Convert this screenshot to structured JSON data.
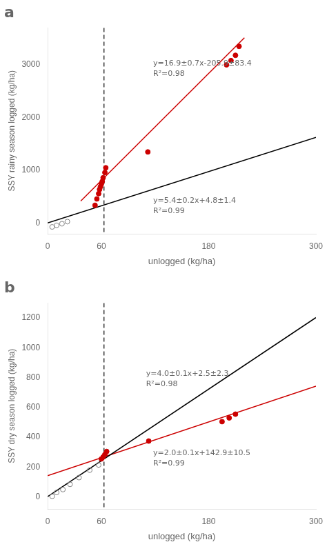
{
  "chart_data": [
    {
      "type": "scatter",
      "title": "a",
      "xlabel": "unlogged (kg/ha)",
      "ylabel": "SSY rainy season logged (kg/ha)",
      "xlim": [
        0,
        300
      ],
      "ylim": [
        -200,
        3700
      ],
      "xticks": [
        0,
        60,
        180,
        300
      ],
      "yticks": [
        0,
        1000,
        2000,
        3000
      ],
      "grid": false,
      "series": [
        {
          "type": "scatter",
          "marker": "open_circle",
          "color": "#808080",
          "x": [
            5,
            10,
            16,
            22
          ],
          "values": [
            -70,
            -40,
            -10,
            30
          ]
        },
        {
          "type": "scatter",
          "marker": "circle",
          "color": "#cc0000",
          "x": [
            53,
            55,
            57,
            58,
            59,
            60,
            61,
            62,
            64,
            65,
            112,
            200,
            205,
            210,
            214
          ],
          "values": [
            340,
            460,
            560,
            640,
            690,
            740,
            790,
            860,
            960,
            1050,
            1350,
            3000,
            3080,
            3180,
            3350
          ]
        },
        {
          "type": "line",
          "line_style": "solid",
          "color": "#000000",
          "x": [
            0,
            300
          ],
          "values": [
            4.8,
            1624.8
          ]
        },
        {
          "type": "line",
          "line_style": "solid",
          "color": "#cc0000",
          "x": [
            37,
            220
          ],
          "values": [
            419.4,
            3512.1
          ]
        },
        {
          "type": "vline",
          "line_style": "dashed",
          "color": "#000000",
          "x": [
            63
          ]
        }
      ],
      "annotations": [
        {
          "text": "y=16.9±0.7x-205.9±83.4\nR²=0.98",
          "x": 118,
          "y": 3100
        },
        {
          "text": "y=5.4±0.2x+4.8±1.4\nR²=0.99",
          "x": 118,
          "y": 500
        }
      ]
    },
    {
      "type": "scatter",
      "title": "b",
      "xlabel": "unlogged (kg/ha)",
      "ylabel": "SSY dry season logged (kg/ha)",
      "xlim": [
        0,
        300
      ],
      "ylim": [
        -80,
        1300
      ],
      "xticks": [
        0,
        60,
        180,
        300
      ],
      "yticks": [
        0,
        200,
        400,
        600,
        800,
        1000,
        1200
      ],
      "grid": false,
      "series": [
        {
          "type": "scatter",
          "marker": "open_circle",
          "color": "#808080",
          "x": [
            5,
            10,
            17,
            25,
            35,
            47,
            57
          ],
          "values": [
            5,
            30,
            50,
            85,
            130,
            180,
            215
          ]
        },
        {
          "type": "scatter",
          "marker": "circle",
          "color": "#cc0000",
          "x": [
            60,
            62,
            64,
            66,
            113,
            195,
            203,
            210
          ],
          "values": [
            255,
            268,
            285,
            305,
            375,
            505,
            530,
            555
          ]
        },
        {
          "type": "line",
          "line_style": "solid",
          "color": "#000000",
          "x": [
            0,
            300
          ],
          "values": [
            2.5,
            1202.5
          ]
        },
        {
          "type": "line",
          "line_style": "solid",
          "color": "#cc0000",
          "x": [
            0,
            300
          ],
          "values": [
            142.9,
            742.9
          ]
        },
        {
          "type": "vline",
          "line_style": "dashed",
          "color": "#000000",
          "x": [
            63
          ]
        }
      ],
      "annotations": [
        {
          "text": "y=2.0±0.1x+142.9±10.5\nR²=0.99",
          "x": 118,
          "y": 320
        },
        {
          "text": "y=4.0±0.1x+2.5±2.3\nR²=0.98",
          "x": 110,
          "y": 850
        }
      ]
    }
  ]
}
